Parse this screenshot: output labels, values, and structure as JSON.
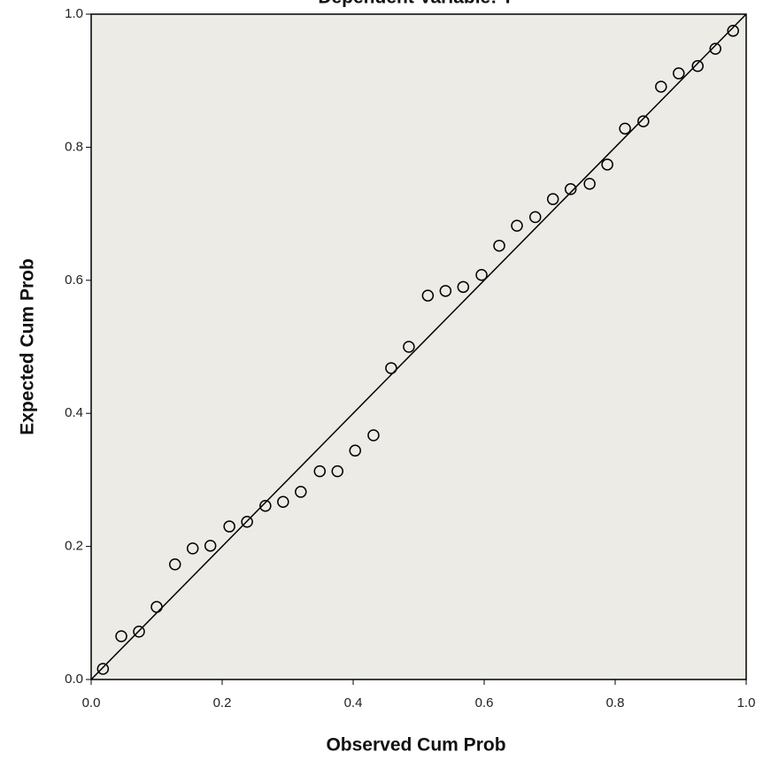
{
  "chart_data": {
    "type": "scatter",
    "title": "Dependent Variable: Y",
    "x_label": "Observed Cum Prob",
    "y_label": "Expected Cum Prob",
    "x": [
      0.018,
      0.046,
      0.073,
      0.1,
      0.128,
      0.155,
      0.182,
      0.211,
      0.238,
      0.266,
      0.293,
      0.32,
      0.349,
      0.376,
      0.403,
      0.431,
      0.458,
      0.485,
      0.514,
      0.541,
      0.568,
      0.596,
      0.623,
      0.65,
      0.678,
      0.705,
      0.732,
      0.761,
      0.788,
      0.815,
      0.843,
      0.87,
      0.897,
      0.926,
      0.953,
      0.98
    ],
    "values": [
      0.016,
      0.065,
      0.072,
      0.109,
      0.173,
      0.197,
      0.201,
      0.23,
      0.237,
      0.261,
      0.267,
      0.282,
      0.313,
      0.313,
      0.344,
      0.367,
      0.468,
      0.5,
      0.577,
      0.584,
      0.59,
      0.608,
      0.652,
      0.682,
      0.695,
      0.722,
      0.737,
      0.745,
      0.774,
      0.828,
      0.839,
      0.891,
      0.911,
      0.922,
      0.948,
      0.975
    ],
    "color": "#000000",
    "background": "#ecebe6",
    "diagonal": true,
    "xlim": [
      0,
      1
    ],
    "ylim": [
      0,
      1
    ],
    "xticks": [
      {
        "value": 0,
        "label": "0.0"
      },
      0.2,
      0.4,
      0.6,
      0.8,
      {
        "value": 1,
        "label": "1.0"
      }
    ],
    "yticks": [
      {
        "value": 0,
        "label": "0.0"
      },
      0.2,
      0.4,
      0.6,
      0.8,
      {
        "value": 1,
        "label": "1.0"
      }
    ]
  }
}
